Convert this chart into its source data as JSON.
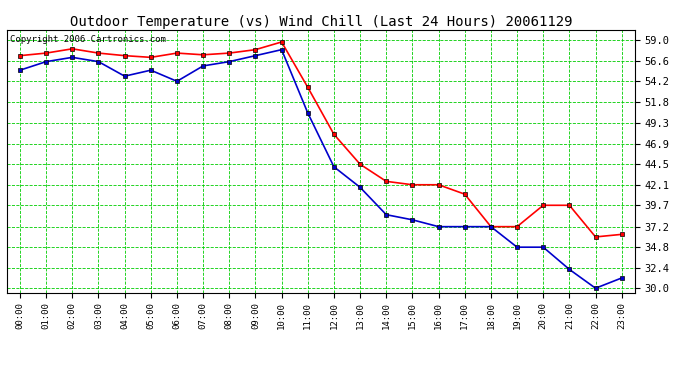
{
  "title": "Outdoor Temperature (vs) Wind Chill (Last 24 Hours) 20061129",
  "copyright": "Copyright 2006 Cartronics.com",
  "hours": [
    "00:00",
    "01:00",
    "02:00",
    "03:00",
    "04:00",
    "05:00",
    "06:00",
    "07:00",
    "08:00",
    "09:00",
    "10:00",
    "11:00",
    "12:00",
    "13:00",
    "14:00",
    "15:00",
    "16:00",
    "17:00",
    "18:00",
    "19:00",
    "20:00",
    "21:00",
    "22:00",
    "23:00"
  ],
  "outdoor_temp": [
    57.2,
    57.5,
    58.0,
    57.5,
    57.2,
    57.0,
    57.5,
    57.3,
    57.5,
    57.9,
    58.8,
    53.5,
    48.0,
    44.5,
    42.5,
    42.1,
    42.1,
    41.0,
    37.2,
    37.2,
    39.7,
    39.7,
    36.0,
    36.3
  ],
  "wind_chill": [
    55.5,
    56.5,
    57.0,
    56.5,
    54.8,
    55.5,
    54.2,
    56.0,
    56.5,
    57.2,
    57.9,
    50.5,
    44.2,
    41.8,
    38.6,
    38.0,
    37.2,
    37.2,
    37.2,
    34.8,
    34.8,
    32.2,
    30.0,
    31.2
  ],
  "temp_color": "#ff0000",
  "windchill_color": "#0000cc",
  "background_color": "#ffffff",
  "grid_color": "#00cc00",
  "yticks": [
    30.0,
    32.4,
    34.8,
    37.2,
    39.7,
    42.1,
    44.5,
    46.9,
    49.3,
    51.8,
    54.2,
    56.6,
    59.0
  ],
  "ylim": [
    29.5,
    60.2
  ],
  "xlim": [
    -0.5,
    23.5
  ],
  "title_fontsize": 10,
  "copyright_fontsize": 6.5,
  "figwidth": 6.9,
  "figheight": 3.75,
  "dpi": 100
}
